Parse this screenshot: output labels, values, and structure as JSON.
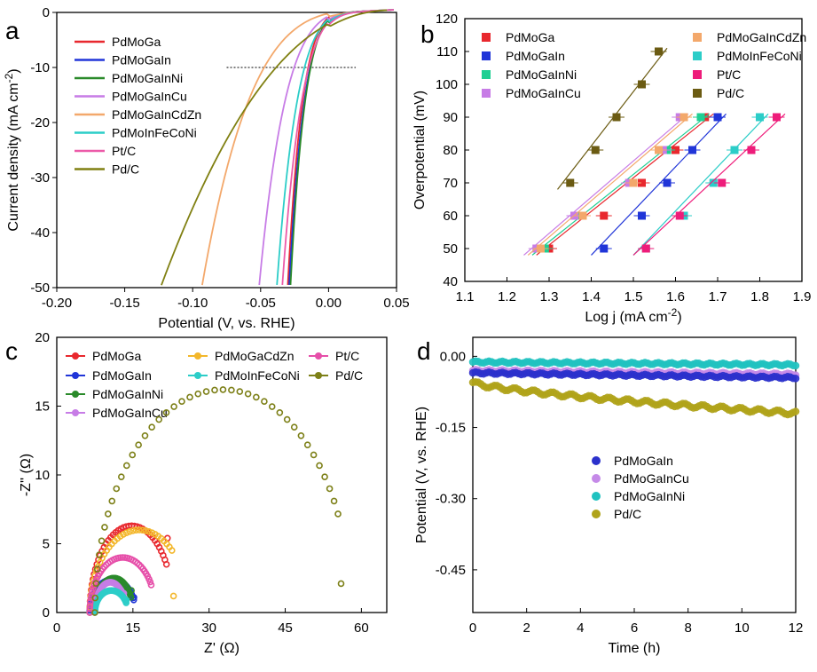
{
  "colors": {
    "PdMoGa": "#e8282e",
    "PdMoGaIn": "#2035d8",
    "PdMoGaInNi": "#2a8a2a",
    "PdMoGaInCu": "#c77ce6",
    "PdMoGaInCdZn": "#f3a86b",
    "PdMoInFeCoNi": "#2ccdc8",
    "PtC": "#ec5aa8",
    "PdC": "#808012",
    "ni_b": "#1fcf93",
    "ptc_b": "#ee1c7a",
    "pdc_b": "#6b5b12",
    "cdzn_c": "#f3b72b",
    "ptc_c": "#e64fa9",
    "pdc_c": "#7d8018",
    "gain_d": "#2b31cc",
    "ni_d": "#20c2c0",
    "cu_d": "#c58ae8",
    "pdc_d": "#b0a31a"
  },
  "chart_data": [
    {
      "panel": "a",
      "type": "line",
      "xlabel": "Potential (V, vs. RHE)",
      "ylabel_main": "Current density (mA cm",
      "ylabel_sup": "-2",
      "ylabel_end": ")",
      "xlim": [
        -0.2,
        0.05
      ],
      "ylim": [
        -50,
        0
      ],
      "xticks": [
        "-0.20",
        "-0.15",
        "-0.10",
        "-0.05",
        "0.00",
        "0.05"
      ],
      "yticks": [
        "0",
        "-10",
        "-20",
        "-30",
        "-40",
        "-50"
      ],
      "reference_line": {
        "y": -10,
        "x_from": -0.075,
        "x_to": 0.02
      },
      "series": [
        {
          "name": "PdMoGa",
          "color_key": "PdMoGa",
          "onset": 0.045,
          "tail": 0.0,
          "x50": -0.03
        },
        {
          "name": "PdMoGaIn",
          "color_key": "PdMoGaIn",
          "onset": 0.048,
          "tail": 0.0,
          "x50": -0.029
        },
        {
          "name": "PdMoGaInNi",
          "color_key": "PdMoGaInNi",
          "onset": 0.046,
          "tail": 0.0,
          "x50": -0.028
        },
        {
          "name": "PdMoGaInCu",
          "color_key": "PdMoGaInCu",
          "onset": 0.048,
          "tail": 0.3,
          "x50": -0.051
        },
        {
          "name": "PdMoGaInCdZn",
          "color_key": "PdMoGaInCdZn",
          "onset": 0.048,
          "tail": 0.5,
          "x50": -0.093
        },
        {
          "name": "PdMoInFeCoNi",
          "color_key": "PdMoInFeCoNi",
          "onset": 0.048,
          "tail": 0.2,
          "x50": -0.038
        },
        {
          "name": "Pt/C",
          "color_key": "PtC",
          "onset": 0.048,
          "tail": 0.2,
          "x50": -0.034
        },
        {
          "name": "Pd/C",
          "color_key": "PdC",
          "onset": 0.043,
          "tail": 0.8,
          "x50": -0.123
        }
      ]
    },
    {
      "panel": "b",
      "type": "scatter",
      "xlabel_main": "Log j (mA cm",
      "xlabel_sup": "-2",
      "xlabel_end": ")",
      "ylabel": "Overpotential (mV)",
      "xlim": [
        1.1,
        1.9
      ],
      "ylim": [
        40,
        120
      ],
      "xticks": [
        "1.1",
        "1.2",
        "1.3",
        "1.4",
        "1.5",
        "1.6",
        "1.7",
        "1.8",
        "1.9"
      ],
      "yticks": [
        "40",
        "50",
        "60",
        "70",
        "80",
        "90",
        "100",
        "110",
        "120"
      ],
      "series": [
        {
          "name": "PdMoGa",
          "color_key": "PdMoGa",
          "eta": [
            50,
            60,
            70,
            80,
            90
          ],
          "logj": [
            1.3,
            1.43,
            1.52,
            1.6,
            1.67
          ]
        },
        {
          "name": "PdMoGaIn",
          "color_key": "PdMoGaIn",
          "eta": [
            50,
            60,
            70,
            80,
            90
          ],
          "logj": [
            1.43,
            1.52,
            1.58,
            1.64,
            1.7
          ]
        },
        {
          "name": "PdMoGaInNi",
          "color_key": "ni_b",
          "eta": [
            50,
            60,
            70,
            80,
            90
          ],
          "logj": [
            1.29,
            1.37,
            1.5,
            1.58,
            1.66
          ]
        },
        {
          "name": "PdMoGaInCu",
          "color_key": "PdMoGaInCu",
          "eta": [
            50,
            60,
            70,
            80,
            90
          ],
          "logj": [
            1.27,
            1.36,
            1.49,
            1.57,
            1.61
          ]
        },
        {
          "name": "PdMoGaInCdZn",
          "color_key": "PdMoGaInCdZn",
          "eta": [
            50,
            60,
            70,
            80,
            90
          ],
          "logj": [
            1.28,
            1.38,
            1.5,
            1.56,
            1.62
          ]
        },
        {
          "name": "PdMoInFeCoNi",
          "color_key": "PdMoInFeCoNi",
          "eta": [
            50,
            60,
            70,
            80,
            90
          ],
          "logj": [
            1.53,
            1.62,
            1.69,
            1.74,
            1.8
          ]
        },
        {
          "name": "Pt/C",
          "color_key": "ptc_b",
          "eta": [
            50,
            60,
            70,
            80,
            90
          ],
          "logj": [
            1.53,
            1.61,
            1.71,
            1.78,
            1.84
          ]
        },
        {
          "name": "Pd/C",
          "color_key": "pdc_b",
          "eta": [
            70,
            80,
            90,
            100,
            110
          ],
          "logj": [
            1.35,
            1.41,
            1.46,
            1.52,
            1.56
          ]
        }
      ]
    },
    {
      "panel": "c",
      "type": "scatter",
      "xlabel": "Z' (Ω)",
      "ylabel": "-Z'' (Ω)",
      "xlim": [
        0,
        65
      ],
      "ylim": [
        0,
        20
      ],
      "xticks": [
        "0",
        "15",
        "30",
        "45",
        "60"
      ],
      "yticks": [
        "0",
        "5",
        "10",
        "15",
        "20"
      ],
      "series": [
        {
          "name": "PdMoGa",
          "color_key": "PdMoGa",
          "x0": 6.5,
          "x1": 23.0,
          "h": 6.3,
          "xend": 21.8,
          "yend": 5.4
        },
        {
          "name": "PdMoGaIn",
          "color_key": "PdMoGaIn",
          "x0": 6.5,
          "x1": 15.5,
          "h": 2.4,
          "xend": 15.2,
          "yend": 1.1
        },
        {
          "name": "PdMoGaInNi",
          "color_key": "PdMoGaInNi",
          "x0": 7.5,
          "x1": 15.0,
          "h": 2.5,
          "xend": 14.7,
          "yend": 1.6
        },
        {
          "name": "PdMoGaInCu",
          "color_key": "PdMoGaInCu",
          "x0": 7.5,
          "x1": 13.6,
          "h": 2.2,
          "xend": 13.2,
          "yend": 1.4
        },
        {
          "name": "PdMoGaCdZn",
          "color_key": "cdzn_c",
          "x0": 6.5,
          "x1": 26.0,
          "h": 6.0,
          "xend": 23.0,
          "yend": 1.2
        },
        {
          "name": "PdMoInFeCoNi",
          "color_key": "PdMoInFeCoNi",
          "x0": 7.5,
          "x1": 14.0,
          "h": 1.6,
          "xend": 13.7,
          "yend": 0.9
        },
        {
          "name": "Pt/C",
          "color_key": "ptc_c",
          "x0": 6.5,
          "x1": 19.5,
          "h": 4.0,
          "xend": 18.6,
          "yend": 2.0
        },
        {
          "name": "Pd/C",
          "color_key": "pdc_c",
          "x0": 7.5,
          "x1": 58.0,
          "h": 16.2,
          "xend": 56.0,
          "yend": 2.1
        }
      ]
    },
    {
      "panel": "d",
      "type": "scatter",
      "xlabel": "Time (h)",
      "ylabel": "Potential (V, vs. RHE)",
      "xlim": [
        0,
        12
      ],
      "ylim": [
        -0.54,
        0.04
      ],
      "xticks": [
        "0",
        "2",
        "4",
        "6",
        "8",
        "10",
        "12"
      ],
      "yticks": [
        "0.00",
        "-0.15",
        "-0.30",
        "-0.45"
      ],
      "series": [
        {
          "name": "PdMoGaIn",
          "color_key": "gain_d",
          "start": -0.035,
          "end": -0.045
        },
        {
          "name": "PdMoGaInCu",
          "color_key": "cu_d",
          "start": -0.03,
          "end": -0.038
        },
        {
          "name": "PdMoGaInNi",
          "color_key": "ni_d",
          "start": -0.012,
          "end": -0.018
        },
        {
          "name": "Pd/C",
          "color_key": "pdc_d",
          "start": -0.055,
          "end": -0.12
        }
      ]
    }
  ],
  "panel_labels": {
    "a": "a",
    "b": "b",
    "c": "c",
    "d": "d"
  }
}
